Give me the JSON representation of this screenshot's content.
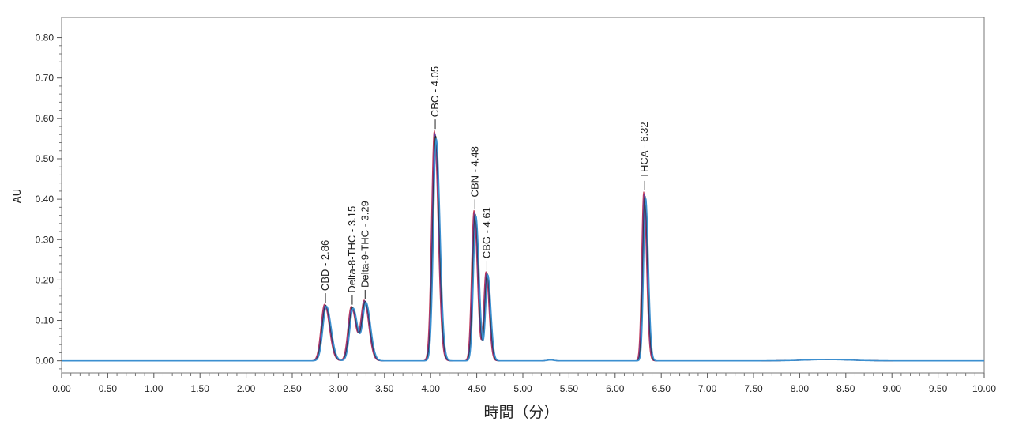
{
  "chart_data": {
    "type": "line",
    "title": "",
    "xlabel": "時間（分）",
    "ylabel": "AU",
    "xlim": [
      0,
      10
    ],
    "ylim": [
      -0.03,
      0.85
    ],
    "x_ticks": [
      "0.00",
      "0.50",
      "1.00",
      "1.50",
      "2.00",
      "2.50",
      "3.00",
      "3.50",
      "4.00",
      "4.50",
      "5.00",
      "5.50",
      "6.00",
      "6.50",
      "7.00",
      "7.50",
      "8.00",
      "8.50",
      "9.00",
      "9.50",
      "10.00"
    ],
    "y_ticks": [
      "0.00",
      "0.10",
      "0.20",
      "0.30",
      "0.40",
      "0.50",
      "0.60",
      "0.70",
      "0.80"
    ],
    "grid": false,
    "series_colors": [
      "#c0395a",
      "#6a3d9a",
      "#2b2b2b",
      "#3b8fd0"
    ],
    "peaks": [
      {
        "label": "CBD - 2.86",
        "rt": 2.86,
        "height": 0.14
      },
      {
        "label": "Delta-8-THC - 3.15",
        "rt": 3.15,
        "height": 0.135
      },
      {
        "label": "Delta-9-THC - 3.29",
        "rt": 3.29,
        "height": 0.148
      },
      {
        "label": "CBC - 4.05",
        "rt": 4.05,
        "height": 0.57
      },
      {
        "label": "CBN - 4.48",
        "rt": 4.48,
        "height": 0.372
      },
      {
        "label": "CBG - 4.61",
        "rt": 4.61,
        "height": 0.22
      },
      {
        "label": "THCA - 6.32",
        "rt": 6.32,
        "height": 0.418
      }
    ]
  }
}
